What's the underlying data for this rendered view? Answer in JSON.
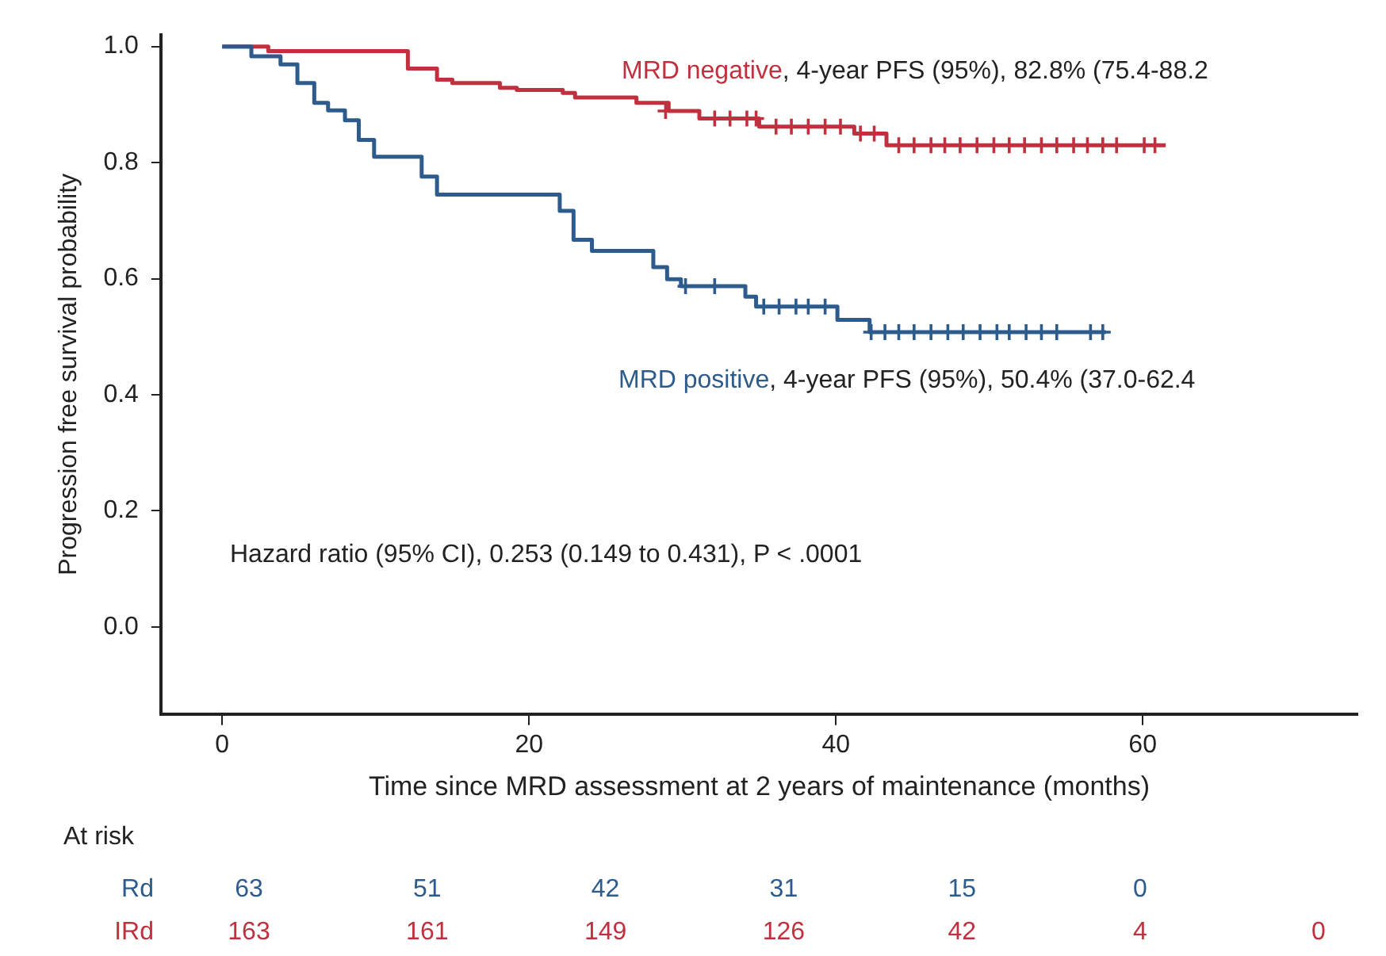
{
  "chart_data": {
    "type": "step",
    "xlabel": "Time since MRD assessment at 2 years of maintenance (months)",
    "ylabel": "Progression free survival probability",
    "xlim": [
      -4,
      74
    ],
    "xticks": [
      0,
      20,
      40,
      60
    ],
    "ylim": [
      -0.15,
      1.02
    ],
    "yticks": [
      {
        "value": 0,
        "label": "0.0"
      },
      {
        "value": 0.2,
        "label": "0.2"
      },
      {
        "value": 0.4,
        "label": "0.4"
      },
      {
        "value": 0.6,
        "label": "0.6"
      },
      {
        "value": 0.8,
        "label": "0.8"
      },
      {
        "value": 1,
        "label": "1.0"
      }
    ],
    "grid": false,
    "legend": false,
    "series": [
      {
        "name": "MRD positive",
        "color": "#2d5b8c",
        "x": [
          0,
          1.9,
          3.8,
          4.9,
          6,
          6.9,
          8,
          8.9,
          9.9,
          13,
          14,
          22,
          22.9,
          24.1,
          28.1,
          29,
          29.9,
          34.1,
          34.8,
          40.1,
          42.2,
          57.6
        ],
        "values": [
          1,
          0.983,
          0.969,
          0.937,
          0.903,
          0.89,
          0.873,
          0.839,
          0.81,
          0.776,
          0.745,
          0.717,
          0.667,
          0.648,
          0.62,
          0.599,
          0.587,
          0.569,
          0.552,
          0.529,
          0.508,
          0.508
        ]
      },
      {
        "name": "MRD negative",
        "color": "#c0303e",
        "x": [
          0,
          3,
          12.1,
          14,
          15,
          18.1,
          19.2,
          22.2,
          23,
          27,
          29.1,
          31.1,
          35,
          41.2,
          43.3,
          61.5
        ],
        "values": [
          1,
          0.992,
          0.962,
          0.943,
          0.937,
          0.929,
          0.925,
          0.92,
          0.912,
          0.903,
          0.889,
          0.876,
          0.862,
          0.85,
          0.83,
          0.83
        ]
      },
      {
        "type": "scatter",
        "marker": "cross",
        "color": "#2d5b8c",
        "x": [
          30.2,
          32.1,
          35.3,
          36.3,
          37.4,
          38.2,
          39.3,
          42.3,
          43.2,
          44.1,
          45.1,
          46.2,
          47.3,
          48.3,
          49.4,
          50.5,
          51.3,
          52.4,
          53.4,
          54.4,
          56.6,
          57.4
        ],
        "values": [
          0.587,
          0.587,
          0.552,
          0.552,
          0.552,
          0.552,
          0.552,
          0.508,
          0.508,
          0.508,
          0.508,
          0.508,
          0.508,
          0.508,
          0.508,
          0.508,
          0.508,
          0.508,
          0.508,
          0.508,
          0.508,
          0.508
        ]
      },
      {
        "type": "scatter",
        "marker": "cross",
        "color": "#c0303e",
        "x": [
          28.9,
          32.1,
          33.1,
          34.2,
          34.8,
          36.1,
          37.1,
          38.2,
          39.3,
          40.3,
          41.6,
          42.5,
          44.1,
          45.1,
          46.2,
          47.1,
          48.1,
          49.2,
          50.3,
          51.3,
          52.3,
          53.4,
          54.4,
          55.5,
          56.4,
          57.4,
          58.3,
          60.1,
          60.8
        ],
        "values": [
          0.889,
          0.876,
          0.876,
          0.876,
          0.876,
          0.862,
          0.862,
          0.862,
          0.862,
          0.862,
          0.85,
          0.85,
          0.83,
          0.83,
          0.83,
          0.83,
          0.83,
          0.83,
          0.83,
          0.83,
          0.83,
          0.83,
          0.83,
          0.83,
          0.83,
          0.83,
          0.83,
          0.83,
          0.83
        ]
      }
    ],
    "annotations": [
      "Hazard ratio (95% CI), 0.253 (0.149 to 0.431), P < .0001",
      ", 4-year PFS (95%), 50.4% (37.0-62.4",
      ", 4-year PFS (95%), 82.8% (75.4-88.2",
      "At risk",
      "Rd 63 51 42 31 15 0",
      "IRd 163 161 149 126 42 4 0"
    ]
  }
}
